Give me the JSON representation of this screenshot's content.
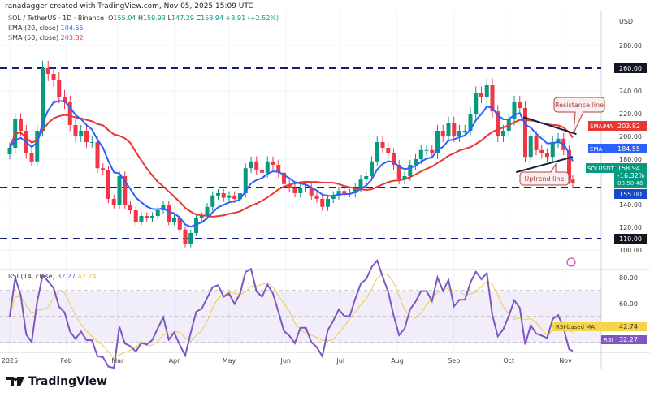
{
  "credit": "ranadagger created with TradingView.com, Nov 05, 2025 15:09 UTC",
  "symbol": {
    "pair": "SOL / TetherUS · 1D · Binance",
    "o_label": "O",
    "open": "155.04",
    "h_label": "H",
    "high": "159.93",
    "l_label": "L",
    "low": "147.29",
    "c_label": "C",
    "close": "158.94",
    "change": "+3.91 (+2.52%)"
  },
  "ema": {
    "label": "EMA (20, close)",
    "value": "184.55",
    "tag": "EMA",
    "color": "#2962ff"
  },
  "sma": {
    "label": "SMA (50, close)",
    "value": "203.82",
    "tag": "SMA:MA",
    "color": "#e53935"
  },
  "rsi": {
    "label": "RSI (14, close)",
    "value": "32.27",
    "ma_value": "42.74",
    "tag": "RSI",
    "ma_tag": "RSI-based MA",
    "color": "#7e57c2",
    "ma_color": "#f2c94c"
  },
  "currency": "USDT",
  "last_price": {
    "tag": "SOLUSDT",
    "price": "158.94",
    "change": "-16.32%",
    "countdown": "08:50:46",
    "color": "#089981"
  },
  "brand": "TradingView",
  "annotations": {
    "resistance": "Resistance line",
    "uptrend": "Uptrend line"
  },
  "chart_data": {
    "type": "candlestick",
    "title": "SOL / TetherUS · 1D · Binance",
    "ylim": [
      90,
      300
    ],
    "y_ticks": [
      "280.00",
      "240.00",
      "220.00",
      "200.00",
      "180.00",
      "140.00",
      "120.00",
      "100.00"
    ],
    "levels": [
      {
        "price": 260,
        "label": "260.00"
      },
      {
        "price": 155,
        "label": "155.00"
      },
      {
        "price": 110,
        "label": "110.00"
      }
    ],
    "x_ticks": [
      "2025",
      "Feb",
      "Mar",
      "Apr",
      "May",
      "Jun",
      "Jul",
      "Aug",
      "Sep",
      "Oct",
      "Nov"
    ],
    "rsi_ticks": [
      "80.00",
      "60.00"
    ],
    "rsi_band": [
      30,
      70
    ],
    "trendlines": [
      {
        "name": "resistance",
        "from": [
          "2025-10-09",
          217
        ],
        "to": [
          "2025-11-07",
          202
        ]
      },
      {
        "name": "uptrend",
        "from": [
          "2025-10-05",
          168.5
        ],
        "to": [
          "2025-11-05",
          182
        ]
      }
    ],
    "closes": [
      [
        "2025-01-01",
        190
      ],
      [
        "2025-01-04",
        215
      ],
      [
        "2025-01-07",
        205
      ],
      [
        "2025-01-10",
        185
      ],
      [
        "2025-01-13",
        178
      ],
      [
        "2025-01-16",
        205
      ],
      [
        "2025-01-19",
        260
      ],
      [
        "2025-01-22",
        255
      ],
      [
        "2025-01-25",
        250
      ],
      [
        "2025-01-28",
        235
      ],
      [
        "2025-01-31",
        230
      ],
      [
        "2025-02-03",
        210
      ],
      [
        "2025-02-06",
        200
      ],
      [
        "2025-02-09",
        205
      ],
      [
        "2025-02-12",
        195
      ],
      [
        "2025-02-15",
        195
      ],
      [
        "2025-02-18",
        172
      ],
      [
        "2025-02-21",
        170
      ],
      [
        "2025-02-24",
        145
      ],
      [
        "2025-02-27",
        140
      ],
      [
        "2025-03-02",
        165
      ],
      [
        "2025-03-05",
        140
      ],
      [
        "2025-03-08",
        135
      ],
      [
        "2025-03-11",
        125
      ],
      [
        "2025-03-14",
        130
      ],
      [
        "2025-03-17",
        128
      ],
      [
        "2025-03-20",
        130
      ],
      [
        "2025-03-23",
        135
      ],
      [
        "2025-03-26",
        140
      ],
      [
        "2025-03-29",
        125
      ],
      [
        "2025-04-01",
        128
      ],
      [
        "2025-04-04",
        118
      ],
      [
        "2025-04-07",
        105
      ],
      [
        "2025-04-10",
        115
      ],
      [
        "2025-04-13",
        128
      ],
      [
        "2025-04-16",
        130
      ],
      [
        "2025-04-19",
        138
      ],
      [
        "2025-04-22",
        148
      ],
      [
        "2025-04-25",
        150
      ],
      [
        "2025-04-28",
        146
      ],
      [
        "2025-05-01",
        148
      ],
      [
        "2025-05-04",
        145
      ],
      [
        "2025-05-07",
        150
      ],
      [
        "2025-05-10",
        172
      ],
      [
        "2025-05-13",
        178
      ],
      [
        "2025-05-16",
        170
      ],
      [
        "2025-05-19",
        168
      ],
      [
        "2025-05-22",
        178
      ],
      [
        "2025-05-25",
        175
      ],
      [
        "2025-05-28",
        168
      ],
      [
        "2025-05-31",
        158
      ],
      [
        "2025-06-03",
        155
      ],
      [
        "2025-06-06",
        150
      ],
      [
        "2025-06-09",
        155
      ],
      [
        "2025-06-12",
        155
      ],
      [
        "2025-06-15",
        148
      ],
      [
        "2025-06-18",
        145
      ],
      [
        "2025-06-21",
        138
      ],
      [
        "2025-06-24",
        145
      ],
      [
        "2025-06-27",
        148
      ],
      [
        "2025-06-30",
        152
      ],
      [
        "2025-07-03",
        150
      ],
      [
        "2025-07-06",
        150
      ],
      [
        "2025-07-09",
        155
      ],
      [
        "2025-07-12",
        162
      ],
      [
        "2025-07-15",
        165
      ],
      [
        "2025-07-18",
        178
      ],
      [
        "2025-07-21",
        195
      ],
      [
        "2025-07-24",
        190
      ],
      [
        "2025-07-27",
        185
      ],
      [
        "2025-07-30",
        175
      ],
      [
        "2025-08-02",
        162
      ],
      [
        "2025-08-05",
        165
      ],
      [
        "2025-08-08",
        175
      ],
      [
        "2025-08-11",
        180
      ],
      [
        "2025-08-14",
        188
      ],
      [
        "2025-08-17",
        188
      ],
      [
        "2025-08-20",
        185
      ],
      [
        "2025-08-23",
        205
      ],
      [
        "2025-08-26",
        200
      ],
      [
        "2025-08-29",
        212
      ],
      [
        "2025-09-01",
        200
      ],
      [
        "2025-09-04",
        205
      ],
      [
        "2025-09-07",
        205
      ],
      [
        "2025-09-10",
        220
      ],
      [
        "2025-09-13",
        238
      ],
      [
        "2025-09-16",
        235
      ],
      [
        "2025-09-19",
        245
      ],
      [
        "2025-09-22",
        222
      ],
      [
        "2025-09-25",
        200
      ],
      [
        "2025-09-28",
        205
      ],
      [
        "2025-10-01",
        215
      ],
      [
        "2025-10-04",
        230
      ],
      [
        "2025-10-07",
        225
      ],
      [
        "2025-10-10",
        182
      ],
      [
        "2025-10-13",
        200
      ],
      [
        "2025-10-16",
        188
      ],
      [
        "2025-10-19",
        185
      ],
      [
        "2025-10-22",
        182
      ],
      [
        "2025-10-25",
        195
      ],
      [
        "2025-10-28",
        198
      ],
      [
        "2025-10-31",
        188
      ],
      [
        "2025-11-03",
        162
      ],
      [
        "2025-11-05",
        158.94
      ]
    ]
  }
}
